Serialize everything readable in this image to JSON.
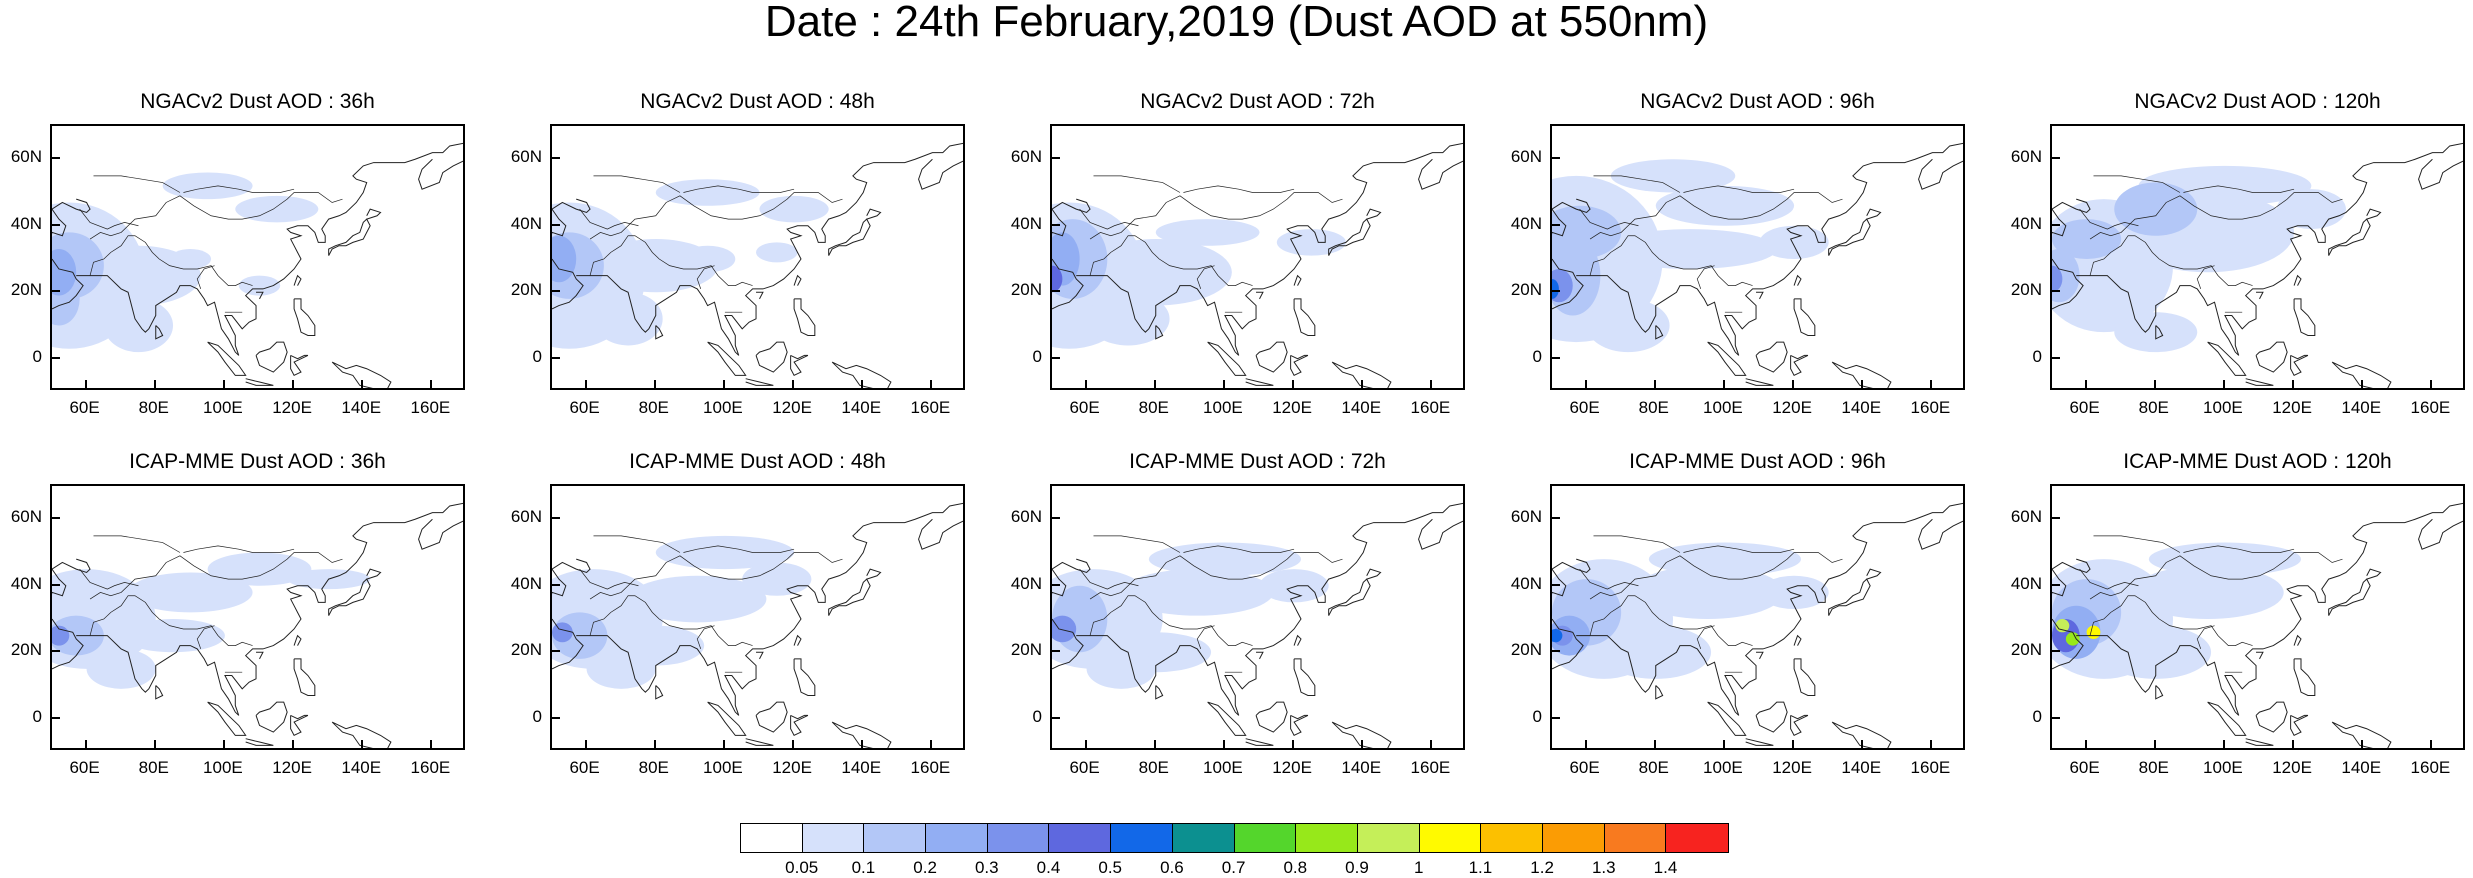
{
  "title": "Date : 24th February,2019 (Dust AOD at 550nm)",
  "panels": [
    {
      "id": "ngac-36",
      "title": "NGACv2 Dust AOD : 36h",
      "model": "NGACv2",
      "lead": "36h"
    },
    {
      "id": "ngac-48",
      "title": "NGACv2 Dust AOD : 48h",
      "model": "NGACv2",
      "lead": "48h"
    },
    {
      "id": "ngac-72",
      "title": "NGACv2 Dust AOD : 72h",
      "model": "NGACv2",
      "lead": "72h"
    },
    {
      "id": "ngac-96",
      "title": "NGACv2 Dust AOD : 96h",
      "model": "NGACv2",
      "lead": "96h"
    },
    {
      "id": "ngac-120",
      "title": "NGACv2 Dust AOD : 120h",
      "model": "NGACv2",
      "lead": "120h"
    },
    {
      "id": "icap-36",
      "title": "ICAP-MME Dust AOD : 36h",
      "model": "ICAP-MME",
      "lead": "36h"
    },
    {
      "id": "icap-48",
      "title": "ICAP-MME Dust AOD : 48h",
      "model": "ICAP-MME",
      "lead": "48h"
    },
    {
      "id": "icap-72",
      "title": "ICAP-MME Dust AOD : 72h",
      "model": "ICAP-MME",
      "lead": "72h"
    },
    {
      "id": "icap-96",
      "title": "ICAP-MME Dust AOD : 96h",
      "model": "ICAP-MME",
      "lead": "96h"
    },
    {
      "id": "icap-120",
      "title": "ICAP-MME Dust AOD : 120h",
      "model": "ICAP-MME",
      "lead": "120h"
    }
  ],
  "axes": {
    "y_ticks": [
      {
        "value": 60,
        "label": "60N"
      },
      {
        "value": 40,
        "label": "40N"
      },
      {
        "value": 20,
        "label": "20N"
      },
      {
        "value": 0,
        "label": "0"
      }
    ],
    "x_ticks": [
      {
        "value": 60,
        "label": "60E"
      },
      {
        "value": 80,
        "label": "80E"
      },
      {
        "value": 100,
        "label": "100E"
      },
      {
        "value": 120,
        "label": "120E"
      },
      {
        "value": 140,
        "label": "140E"
      },
      {
        "value": 160,
        "label": "160E"
      }
    ],
    "lon_range": [
      50,
      170
    ],
    "lat_range": [
      -10,
      70
    ]
  },
  "colorbar": {
    "colors": [
      "#ffffff",
      "#d6e1fb",
      "#b3c7f7",
      "#92aef3",
      "#7b92ec",
      "#5e68df",
      "#1268e8",
      "#0c9090",
      "#54d62c",
      "#97e81a",
      "#c5ef59",
      "#fffa00",
      "#fcc000",
      "#fb9c04",
      "#f87a1f",
      "#f7231f"
    ],
    "labels": [
      "0.05",
      "0.1",
      "0.2",
      "0.3",
      "0.4",
      "0.5",
      "0.6",
      "0.7",
      "0.8",
      "0.9",
      "1",
      "1.1",
      "1.2",
      "1.3",
      "1.4"
    ]
  }
}
